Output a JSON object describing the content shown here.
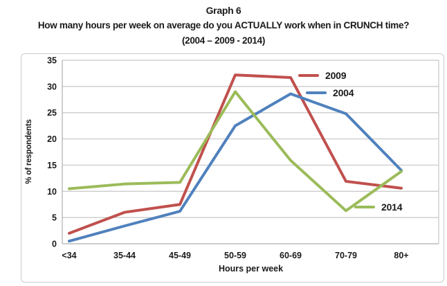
{
  "titles": {
    "graph_label": "Graph 6",
    "question": "How many hours per week on average do you ACTUALLY work when in CRUNCH time?",
    "years": "(2004 – 2009 - 2014)"
  },
  "chart_data": {
    "type": "line",
    "title": "Graph 6",
    "subtitle": "How many hours per week on average do you ACTUALLY work when in CRUNCH time? (2004 – 2009 - 2014)",
    "categories": [
      "<34",
      "35-44",
      "45-49",
      "50-59",
      "60-69",
      "70-79",
      "80+"
    ],
    "series": [
      {
        "name": "2009",
        "color": "#C0504D",
        "values": [
          2,
          6,
          7.5,
          32.2,
          31.7,
          11.9,
          10.6
        ]
      },
      {
        "name": "2004",
        "color": "#4F81BD",
        "values": [
          0.5,
          3.4,
          6.2,
          22.5,
          28.6,
          24.8,
          14
        ]
      },
      {
        "name": "2014",
        "color": "#9BBB59",
        "values": [
          10.5,
          11.4,
          11.7,
          29,
          15.9,
          6.3,
          13.8
        ]
      }
    ],
    "xlabel": "Hours per week",
    "ylabel": "% of respondents",
    "ylim": [
      0,
      35
    ],
    "yticks": [
      0,
      5,
      10,
      15,
      20,
      25,
      30,
      35
    ],
    "grid": true,
    "legend_position": "overlay-inside-right",
    "colors": {
      "gridline": "#c6c6c6",
      "plot_border": "#adadad",
      "background": "#ffffff"
    }
  }
}
